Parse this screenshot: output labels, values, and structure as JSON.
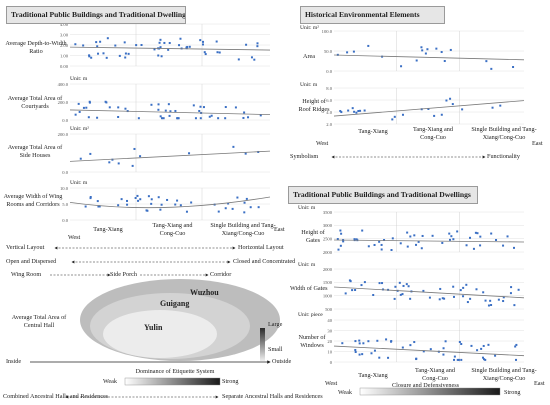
{
  "left": {
    "header": "Traditional Public Buildings and Traditional Dwellings",
    "charts": [
      {
        "label": "Average Depth-to-Width Ratio",
        "unit": "",
        "ticks": [
          "4.00",
          "3.00",
          "2.00",
          "1.00",
          "0.00"
        ]
      },
      {
        "label": "Average Total Area of Courtyards",
        "unit": "Unit: m",
        "ticks": [
          "400.0",
          "200.0",
          "0.0"
        ]
      },
      {
        "label": "Average Total Area of Side Houses",
        "unit": "Unit: m²",
        "ticks": [
          "200.0",
          "0.0"
        ]
      },
      {
        "label": "Average Width of Wing Rooms and Corridors",
        "unit": "Unit: m",
        "ticks": [
          "10.0",
          "5.0",
          "0.0"
        ]
      }
    ],
    "categories": [
      "Tang-Xiang",
      "Tang-Xiang and Cong-Cuo",
      "Single Building and Tang-Xiang/Cong-Cuo"
    ],
    "axis_west": "West",
    "axis_east": "East",
    "pairs": [
      {
        "left": "Vertical Layout",
        "right": "Horizontal Layout"
      },
      {
        "left": "Open and Dispersed",
        "right": "Closed and Concentrated"
      }
    ],
    "wing_room": "Wing Room",
    "side_porch": "Side Porch",
    "corridor": "Corridor",
    "central_hall_label": "Average Total Area of Central Hall",
    "ellipses": [
      "Wuzhou",
      "Guigang",
      "Yulin"
    ],
    "large": "Large",
    "small": "Small",
    "inside": "Inside",
    "outside": "Outside",
    "dominance": "Dominance of Etiquette System",
    "weak": "Weak",
    "strong": "Strong",
    "combined": "Combined Ancestral Halls and Residences",
    "separate": "Separate Ancestral Halls and Residences"
  },
  "right_top": {
    "header": "Historical Environmental Elements",
    "charts": [
      {
        "label": "Area",
        "unit": "Unit: m²",
        "ticks": [
          "100.0",
          "50.0",
          "0.0"
        ]
      },
      {
        "label": "Height of Roof Ridges",
        "unit": "Unit: m",
        "ticks": [
          "8.0",
          "6.0",
          "4.0",
          "2.0"
        ]
      }
    ],
    "categories": [
      "Tang-Xiang",
      "Tang-Xiang and Cong-Cuo",
      "Single Building and Tang-Xiang/Cong-Cuo"
    ],
    "axis_west": "West",
    "axis_east": "East",
    "symbolism": "Symbolism",
    "functionality": "Functionality"
  },
  "right_bottom": {
    "header": "Traditional Public Buildings and Traditional Dwellings",
    "charts": [
      {
        "label": "Height of Gates",
        "unit": "Unit: m",
        "ticks": [
          "3500",
          "3000",
          "2500",
          "2000"
        ]
      },
      {
        "label": "Width of Gates",
        "unit": "Unit: m",
        "ticks": [
          "2000",
          "1500",
          "1000",
          "500"
        ]
      },
      {
        "label": "Number of Windows",
        "unit": "Unit: piece",
        "ticks": [
          "40",
          "30",
          "20",
          "10",
          "0"
        ]
      }
    ],
    "categories": [
      "Tang-Xiang",
      "Tang-Xiang and Cong-Cuo",
      "Single Building and Tang-Xiang/Cong-Cuo"
    ],
    "axis_west": "West",
    "axis_east": "East",
    "closure": "Closure and Defensiveness",
    "weak": "Weak",
    "strong": "Strong"
  },
  "colors": {
    "point": "#3a6fc4",
    "trend": "#7a7a7a",
    "header_bg": "#e6e6e6"
  }
}
